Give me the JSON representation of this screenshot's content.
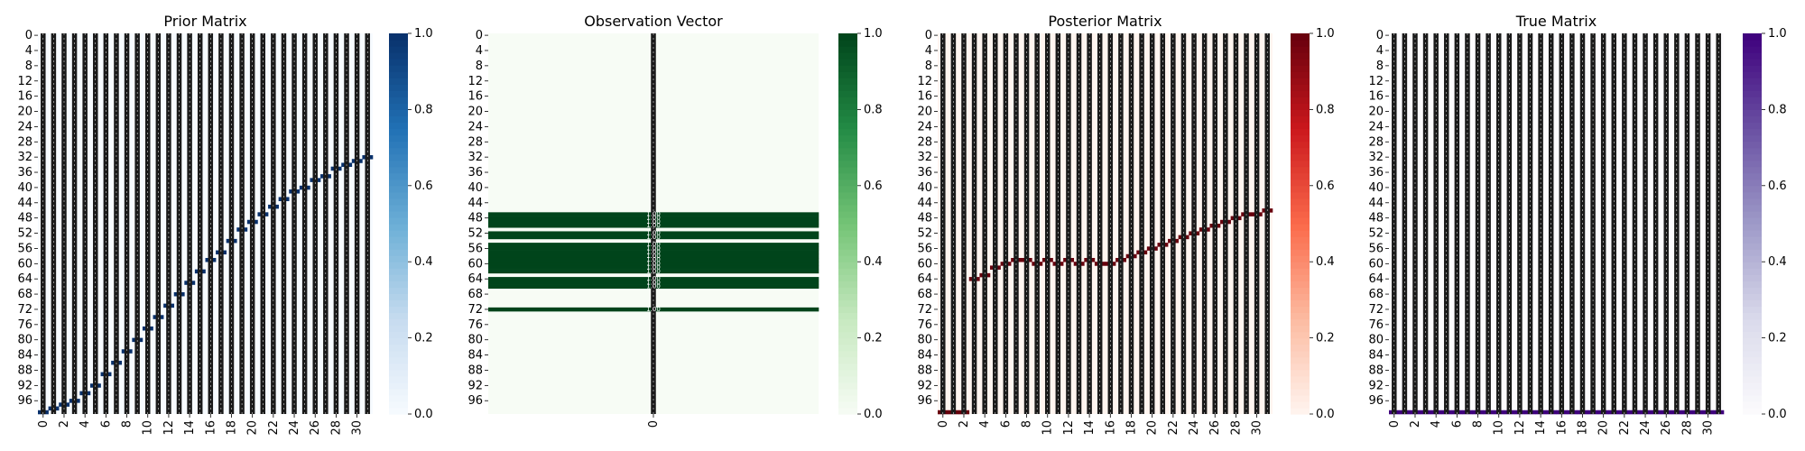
{
  "chart_data": [
    {
      "type": "heatmap",
      "title": "Prior Matrix",
      "colormap": "Blues",
      "colors": [
        "#f7fbff",
        "#c6dbef",
        "#6baed6",
        "#2171b5",
        "#08306b"
      ],
      "cell_text_color": "#ffffff",
      "rows": 100,
      "cols": 32,
      "ytick_labels": [
        "0",
        "4",
        "8",
        "12",
        "16",
        "20",
        "24",
        "28",
        "32",
        "36",
        "40",
        "44",
        "48",
        "52",
        "56",
        "60",
        "64",
        "68",
        "72",
        "76",
        "80",
        "84",
        "88",
        "92",
        "96"
      ],
      "xtick_labels": [
        "0",
        "2",
        "4",
        "6",
        "8",
        "10",
        "12",
        "14",
        "16",
        "18",
        "20",
        "22",
        "24",
        "26",
        "28",
        "30"
      ],
      "colorbar": {
        "range": [
          0,
          1
        ],
        "ticks": [
          "0.0",
          "0.2",
          "0.4",
          "0.6",
          "0.8",
          "1.0"
        ]
      },
      "annotated": true,
      "path": [
        [
          99,
          0
        ],
        [
          98,
          1
        ],
        [
          97,
          2
        ],
        [
          96,
          3
        ],
        [
          94,
          4
        ],
        [
          92,
          5
        ],
        [
          89,
          6
        ],
        [
          86,
          7
        ],
        [
          83,
          8
        ],
        [
          80,
          9
        ],
        [
          77,
          10
        ],
        [
          74,
          11
        ],
        [
          71,
          12
        ],
        [
          68,
          13
        ],
        [
          65,
          14
        ],
        [
          62,
          15
        ],
        [
          59,
          16
        ],
        [
          57,
          17
        ],
        [
          54,
          18
        ],
        [
          51,
          19
        ],
        [
          49,
          20
        ],
        [
          47,
          21
        ],
        [
          45,
          22
        ],
        [
          43,
          23
        ],
        [
          41,
          24
        ],
        [
          40,
          25
        ],
        [
          38,
          26
        ],
        [
          37,
          27
        ],
        [
          35,
          28
        ],
        [
          34,
          29
        ],
        [
          33,
          30
        ],
        [
          32,
          31
        ]
      ]
    },
    {
      "type": "heatmap",
      "title": "Observation Vector",
      "colormap": "Greens",
      "colors": [
        "#f7fcf5",
        "#c7e9c0",
        "#74c476",
        "#238b45",
        "#00441b"
      ],
      "cell_text_color": "#ffffff",
      "rows": 100,
      "cols": 1,
      "ytick_labels": [
        "0",
        "4",
        "8",
        "12",
        "16",
        "20",
        "24",
        "28",
        "32",
        "36",
        "40",
        "44",
        "48",
        "52",
        "56",
        "60",
        "64",
        "68",
        "72",
        "76",
        "80",
        "84",
        "88",
        "92",
        "96"
      ],
      "xtick_labels": [
        "0"
      ],
      "colorbar": {
        "range": [
          0,
          1
        ],
        "ticks": [
          "0.0",
          "0.2",
          "0.4",
          "0.6",
          "0.8",
          "1.0"
        ]
      },
      "annotated": true,
      "value_one_rows": [
        47,
        48,
        49,
        50,
        52,
        53,
        55,
        56,
        57,
        58,
        59,
        60,
        61,
        62,
        64,
        65,
        66,
        72
      ],
      "value_label": "1.00"
    },
    {
      "type": "heatmap",
      "title": "Posterior Matrix",
      "colormap": "Reds",
      "colors": [
        "#fff5f0",
        "#fcbba1",
        "#fb6a4a",
        "#cb181d",
        "#67000d"
      ],
      "cell_text_color": "#ffffff",
      "rows": 100,
      "cols": 32,
      "ytick_labels": [
        "0",
        "4",
        "8",
        "12",
        "16",
        "20",
        "24",
        "28",
        "32",
        "36",
        "40",
        "44",
        "48",
        "52",
        "56",
        "60",
        "64",
        "68",
        "72",
        "76",
        "80",
        "84",
        "88",
        "92",
        "96"
      ],
      "xtick_labels": [
        "0",
        "2",
        "4",
        "6",
        "8",
        "10",
        "12",
        "14",
        "16",
        "18",
        "20",
        "22",
        "24",
        "26",
        "28",
        "30"
      ],
      "colorbar": {
        "range": [
          0,
          1
        ],
        "ticks": [
          "0.0",
          "0.2",
          "0.4",
          "0.6",
          "0.8",
          "1.0"
        ]
      },
      "annotated": true,
      "path": [
        [
          99,
          0
        ],
        [
          99,
          1
        ],
        [
          99,
          2
        ],
        [
          64,
          3
        ],
        [
          63,
          4
        ],
        [
          61,
          5
        ],
        [
          60,
          6
        ],
        [
          59,
          7
        ],
        [
          59,
          8
        ],
        [
          60,
          9
        ],
        [
          59,
          10
        ],
        [
          60,
          11
        ],
        [
          59,
          12
        ],
        [
          60,
          13
        ],
        [
          59,
          14
        ],
        [
          60,
          15
        ],
        [
          60,
          16
        ],
        [
          59,
          17
        ],
        [
          58,
          18
        ],
        [
          57,
          19
        ],
        [
          56,
          20
        ],
        [
          55,
          21
        ],
        [
          54,
          22
        ],
        [
          53,
          23
        ],
        [
          52,
          24
        ],
        [
          51,
          25
        ],
        [
          50,
          26
        ],
        [
          49,
          27
        ],
        [
          48,
          28
        ],
        [
          47,
          29
        ],
        [
          47,
          30
        ],
        [
          46,
          31
        ]
      ]
    },
    {
      "type": "heatmap",
      "title": "True Matrix",
      "colormap": "Purples",
      "colors": [
        "#fcfbfd",
        "#dadaeb",
        "#9e9ac8",
        "#6a51a3",
        "#3f007d"
      ],
      "cell_text_color": "#ffffff",
      "rows": 100,
      "cols": 32,
      "ytick_labels": [
        "0",
        "4",
        "8",
        "12",
        "16",
        "20",
        "24",
        "28",
        "32",
        "36",
        "40",
        "44",
        "48",
        "52",
        "56",
        "60",
        "64",
        "68",
        "72",
        "76",
        "80",
        "84",
        "88",
        "92",
        "96"
      ],
      "xtick_labels": [
        "0",
        "2",
        "4",
        "6",
        "8",
        "10",
        "12",
        "14",
        "16",
        "18",
        "20",
        "22",
        "24",
        "26",
        "28",
        "30"
      ],
      "colorbar": {
        "range": [
          0,
          1
        ],
        "ticks": [
          "0.0",
          "0.2",
          "0.4",
          "0.6",
          "0.8",
          "1.0"
        ]
      },
      "annotated": true,
      "path": [
        [
          99,
          0
        ],
        [
          99,
          1
        ],
        [
          99,
          2
        ],
        [
          99,
          3
        ],
        [
          99,
          4
        ],
        [
          99,
          5
        ],
        [
          99,
          6
        ],
        [
          99,
          7
        ],
        [
          99,
          8
        ],
        [
          99,
          9
        ],
        [
          99,
          10
        ],
        [
          99,
          11
        ],
        [
          99,
          12
        ],
        [
          99,
          13
        ],
        [
          99,
          14
        ],
        [
          99,
          15
        ],
        [
          99,
          16
        ],
        [
          99,
          17
        ],
        [
          99,
          18
        ],
        [
          99,
          19
        ],
        [
          99,
          20
        ],
        [
          99,
          21
        ],
        [
          99,
          22
        ],
        [
          99,
          23
        ],
        [
          99,
          24
        ],
        [
          99,
          25
        ],
        [
          99,
          26
        ],
        [
          99,
          27
        ],
        [
          99,
          28
        ],
        [
          99,
          29
        ],
        [
          99,
          30
        ],
        [
          99,
          31
        ]
      ]
    }
  ]
}
